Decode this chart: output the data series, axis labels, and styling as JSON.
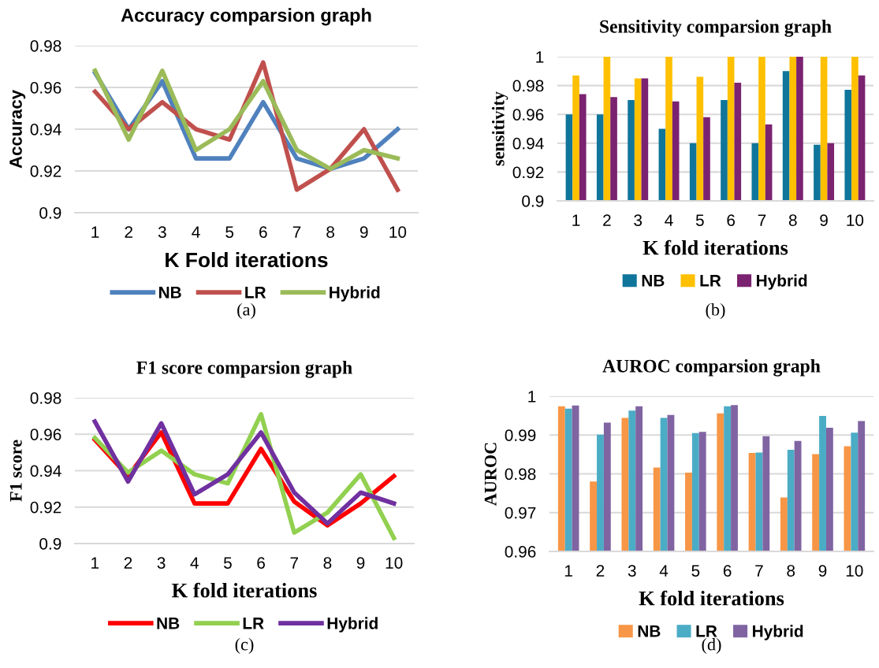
{
  "chart_data": [
    {
      "type": "line",
      "title": "Accuracy comparsion graph",
      "xlabel": "K Fold iterations",
      "ylabel": "Accuracy",
      "categories": [
        "1",
        "2",
        "3",
        "4",
        "5",
        "6",
        "7",
        "8",
        "9",
        "10"
      ],
      "series": [
        {
          "name": "NB",
          "color": "#4f81bd",
          "values": [
            0.967,
            0.94,
            0.963,
            0.926,
            0.926,
            0.953,
            0.926,
            0.921,
            0.926,
            0.94
          ]
        },
        {
          "name": "LR",
          "color": "#c0504d",
          "values": [
            0.958,
            0.94,
            0.953,
            0.94,
            0.935,
            0.972,
            0.911,
            0.921,
            0.94,
            0.911
          ]
        },
        {
          "name": "Hybrid",
          "color": "#9bbb59",
          "values": [
            0.968,
            0.935,
            0.968,
            0.93,
            0.94,
            0.963,
            0.93,
            0.921,
            0.93,
            0.926
          ]
        }
      ],
      "ylim": [
        0.9,
        0.98
      ],
      "yticks": [
        0.9,
        0.92,
        0.94,
        0.96,
        0.98
      ],
      "grid": "y",
      "legend": "bottom",
      "marker": "none",
      "annotations": [
        "(a)"
      ]
    },
    {
      "type": "bar",
      "title": "Sensitivity comparsion graph",
      "xlabel": "K fold iterations",
      "ylabel": "sensitivity",
      "categories": [
        "1",
        "2",
        "3",
        "4",
        "5",
        "6",
        "7",
        "8",
        "9",
        "10"
      ],
      "series": [
        {
          "name": "NB",
          "color": "#10759b",
          "values": [
            0.96,
            0.96,
            0.97,
            0.95,
            0.94,
            0.97,
            0.94,
            0.99,
            0.939,
            0.977
          ]
        },
        {
          "name": "LR",
          "color": "#ffc000",
          "values": [
            0.987,
            1,
            0.985,
            1,
            0.986,
            1,
            1,
            1,
            1,
            1
          ]
        },
        {
          "name": "Hybrid",
          "color": "#7b2271",
          "values": [
            0.974,
            0.972,
            0.985,
            0.969,
            0.958,
            0.982,
            0.953,
            1,
            0.94,
            0.987
          ]
        }
      ],
      "ylim": [
        0.9,
        1
      ],
      "yticks": [
        0.9,
        0.92,
        0.94,
        0.96,
        0.98,
        1
      ],
      "grid": "y",
      "legend": "bottom",
      "annotations": [
        "(b)"
      ]
    },
    {
      "type": "line",
      "title": "F1 score comparsion graph",
      "xlabel": "K fold iterations",
      "ylabel": "F1 score",
      "categories": [
        "1",
        "2",
        "3",
        "4",
        "5",
        "6",
        "7",
        "8",
        "9",
        "10"
      ],
      "series": [
        {
          "name": "NB",
          "color": "#ff0000",
          "values": [
            0.957,
            0.937,
            0.961,
            0.922,
            0.922,
            0.952,
            0.923,
            0.91,
            0.922,
            0.937
          ]
        },
        {
          "name": "LR",
          "color": "#92d050",
          "values": [
            0.958,
            0.939,
            0.951,
            0.938,
            0.933,
            0.971,
            0.906,
            0.917,
            0.938,
            0.903
          ]
        },
        {
          "name": "Hybrid",
          "color": "#7030a0",
          "values": [
            0.967,
            0.934,
            0.966,
            0.927,
            0.938,
            0.961,
            0.928,
            0.911,
            0.928,
            0.922
          ]
        }
      ],
      "ylim": [
        0.9,
        0.98
      ],
      "yticks": [
        0.9,
        0.92,
        0.94,
        0.96,
        0.98
      ],
      "grid": "y",
      "legend": "bottom",
      "marker": "none",
      "annotations": [
        "(c)"
      ]
    },
    {
      "type": "bar",
      "title": "AUROC comparsion graph",
      "xlabel": "K fold iterations",
      "ylabel": "AUROC",
      "categories": [
        "1",
        "2",
        "3",
        "4",
        "5",
        "6",
        "7",
        "8",
        "9",
        "10"
      ],
      "series": [
        {
          "name": "NB",
          "color": "#f79646",
          "values": [
            0.9974,
            0.978,
            0.9944,
            0.9816,
            0.9803,
            0.9956,
            0.9854,
            0.9739,
            0.9851,
            0.9871
          ]
        },
        {
          "name": "LR",
          "color": "#4bacc6",
          "values": [
            0.9968,
            0.9901,
            0.9963,
            0.9944,
            0.9905,
            0.9974,
            0.9855,
            0.9862,
            0.9949,
            0.9906
          ]
        },
        {
          "name": "Hybrid",
          "color": "#8064a2",
          "values": [
            0.9976,
            0.9932,
            0.9974,
            0.9952,
            0.9908,
            0.9977,
            0.9897,
            0.9885,
            0.9919,
            0.9936
          ]
        }
      ],
      "ylim": [
        0.96,
        1
      ],
      "yticks": [
        0.96,
        0.97,
        0.98,
        0.99,
        1
      ],
      "grid": "y",
      "legend": "bottom",
      "annotations": [
        "(d)"
      ]
    }
  ]
}
